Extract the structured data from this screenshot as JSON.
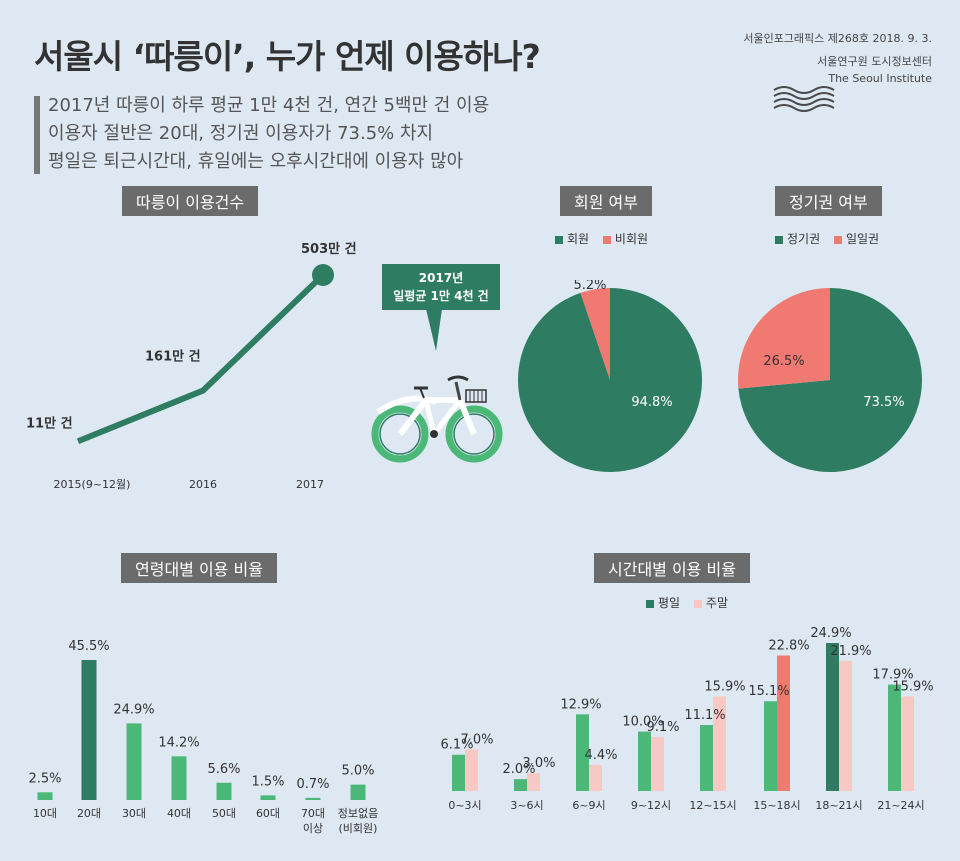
{
  "header": {
    "title": "서울시 ‘따릉이’, 누가 언제 이용하나?",
    "pub_line": "서울인포그래픽스 제268호 2018. 9. 3.",
    "org_kr": "서울연구원 도시정보센터",
    "org_en": "The Seoul Institute",
    "subtitles": [
      "2017년 따릉이 하루 평균 1만 4천 건, 연간 5백만 건 이용",
      "이용자 절반은 20대, 정기권 이용자가 73.5% 차지",
      "평일은 퇴근시간대, 휴일에는 오후시간대에 이용자 많아"
    ]
  },
  "colors": {
    "dark_green": "#2e7d63",
    "green": "#4cb878",
    "red": "#f07a72",
    "pink": "#f6c9c4",
    "label_bg": "#6b6b6b"
  },
  "callout": {
    "line1": "2017년",
    "line2": "일평균 1만 4천 건"
  },
  "chart_data": [
    {
      "type": "line",
      "title": "따릉이 이용건수",
      "categories": [
        "2015(9~12월)",
        "2016",
        "2017"
      ],
      "values": [
        11,
        161,
        503
      ],
      "data_labels": [
        "11만 건",
        "161만 건",
        "503만 건"
      ]
    },
    {
      "type": "pie",
      "title": "회원 여부",
      "labels": [
        "회원",
        "비회원"
      ],
      "values": [
        94.8,
        5.2
      ],
      "data_labels": [
        "94.8%",
        "5.2%"
      ],
      "colors": [
        "#2e7d63",
        "#f07a72"
      ]
    },
    {
      "type": "pie",
      "title": "정기권 여부",
      "labels": [
        "정기권",
        "일일권"
      ],
      "values": [
        73.5,
        26.5
      ],
      "data_labels": [
        "73.5%",
        "26.5%"
      ],
      "colors": [
        "#2e7d63",
        "#f07a72"
      ]
    },
    {
      "type": "bar",
      "title": "연령대별 이용 비율",
      "categories": [
        "10대",
        "20대",
        "30대",
        "40대",
        "50대",
        "60대",
        "70대 이상",
        "정보없음 (비회원)"
      ],
      "category_lines": [
        [
          "10대"
        ],
        [
          "20대"
        ],
        [
          "30대"
        ],
        [
          "40대"
        ],
        [
          "50대"
        ],
        [
          "60대"
        ],
        [
          "70대",
          "이상"
        ],
        [
          "정보없음",
          "(비회원)"
        ]
      ],
      "values": [
        2.5,
        45.5,
        24.9,
        14.2,
        5.6,
        1.5,
        0.7,
        5.0
      ],
      "data_labels": [
        "2.5%",
        "45.5%",
        "24.9%",
        "14.2%",
        "5.6%",
        "1.5%",
        "0.7%",
        "5.0%"
      ],
      "highlight_index": 1
    },
    {
      "type": "bar",
      "title": "시간대별 이용 비율",
      "categories": [
        "0~3시",
        "3~6시",
        "6~9시",
        "9~12시",
        "12~15시",
        "15~18시",
        "18~21시",
        "21~24시"
      ],
      "legend": [
        "평일",
        "주말"
      ],
      "series": [
        {
          "name": "평일",
          "values": [
            6.1,
            2.0,
            12.9,
            10.0,
            11.1,
            15.1,
            24.9,
            17.9
          ],
          "data_labels": [
            "6.1%",
            "2.0%",
            "12.9%",
            "10.0%",
            "11.1%",
            "15.1%",
            "24.9%",
            "17.9%"
          ]
        },
        {
          "name": "주말",
          "values": [
            7.0,
            3.0,
            4.4,
            9.1,
            15.9,
            22.8,
            21.9,
            15.9
          ],
          "data_labels": [
            "7.0%",
            "3.0%",
            "4.4%",
            "9.1%",
            "15.9%",
            "22.8%",
            "21.9%",
            "15.9%"
          ]
        }
      ],
      "weekday_highlight_index": 6,
      "weekend_highlight_index": 5
    }
  ]
}
